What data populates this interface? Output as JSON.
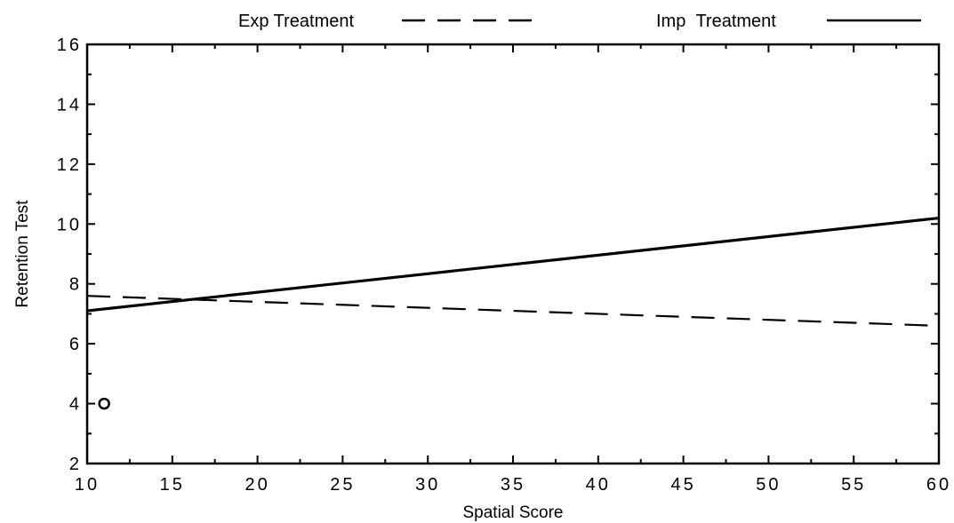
{
  "chart_data": {
    "type": "line",
    "title": "",
    "xlabel": "Spatial Score",
    "ylabel": "Retention Test",
    "xlim": [
      10,
      60
    ],
    "ylim": [
      2,
      16
    ],
    "x_ticks": [
      10,
      15,
      20,
      25,
      30,
      35,
      40,
      45,
      50,
      55,
      60
    ],
    "y_ticks": [
      2,
      4,
      6,
      8,
      10,
      12,
      14,
      16
    ],
    "x_tick_labels": [
      "10",
      "15",
      "20",
      "25",
      "30",
      "35",
      "40",
      "45",
      "50",
      "55",
      "60"
    ],
    "y_tick_labels": [
      "2",
      "4",
      "6",
      "8",
      "10",
      "12",
      "14",
      "16"
    ],
    "grid": false,
    "legend_position": "top",
    "series": [
      {
        "name": "Exp Treatment",
        "style": "dashed",
        "color": "#000000",
        "x": [
          10,
          60
        ],
        "y": [
          7.6,
          6.6
        ]
      },
      {
        "name": "Imp Treatment",
        "style": "solid",
        "color": "#000000",
        "x": [
          10,
          60
        ],
        "y": [
          7.1,
          10.2
        ]
      }
    ],
    "points": [
      {
        "x": 11,
        "y": 4.0,
        "marker": "circle"
      }
    ]
  }
}
